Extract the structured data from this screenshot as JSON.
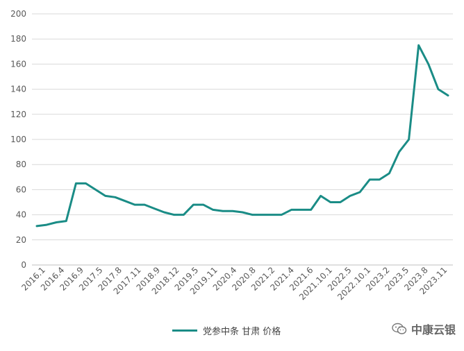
{
  "chart_data": {
    "type": "line",
    "title": "",
    "xlabel": "",
    "ylabel": "",
    "ylim": [
      0,
      200
    ],
    "yticks": [
      0,
      20,
      40,
      60,
      80,
      100,
      120,
      140,
      160,
      180,
      200
    ],
    "grid": true,
    "legend_position": "bottom",
    "line_color": "#1a8c86",
    "tick_labels": [
      "2016.1",
      "2016.4",
      "2016.9",
      "2017.5",
      "2017.8",
      "2017.11",
      "2018.9",
      "2018.12",
      "2019.5",
      "2019.11",
      "2020.4",
      "2020.8",
      "2021.2",
      "2021.4",
      "2021.6",
      "2021.10.1",
      "2022.5",
      "2022.10.1",
      "2023.2",
      "2023.5",
      "2023.8",
      "2023.11"
    ],
    "series": [
      {
        "name": "党参中条 甘肃 价格",
        "values": [
          31,
          32,
          34,
          35,
          65,
          65,
          60,
          55,
          54,
          51,
          48,
          48,
          45,
          42,
          40,
          40,
          48,
          48,
          44,
          43,
          43,
          42,
          40,
          40,
          40,
          40,
          44,
          44,
          44,
          55,
          50,
          50,
          55,
          58,
          68,
          68,
          73,
          90,
          100,
          175,
          160,
          140,
          135
        ]
      }
    ]
  },
  "legend": {
    "label": "党参中条 甘肃 价格"
  },
  "watermark": {
    "text": "中康云银",
    "icon": "wechat-icon"
  }
}
